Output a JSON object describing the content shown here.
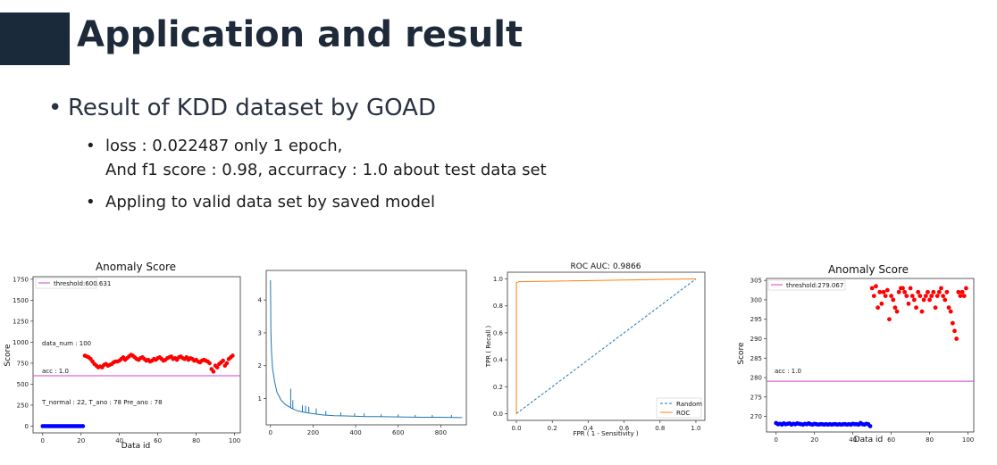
{
  "slide": {
    "title": "Application and result",
    "bullet_main": "Result of KDD dataset by GOAD",
    "sub_bullets": [
      "loss : 0.022487 only 1 epoch,",
      "And f1 score : 0.98, accurracy : 1.0 about test data set",
      "Appling to valid data set by saved model"
    ],
    "bullet_char": "•",
    "colors": {
      "title_block": "#1b2a3b",
      "title": "#1e2a3a",
      "normal": "#0000ff",
      "anomaly": "#ff0000",
      "threshold": "#cc44cc",
      "loss_line": "#1f77b4",
      "roc": "#ff7f0e",
      "random": "#1f77b4"
    }
  },
  "chart_data": [
    {
      "type": "scatter",
      "title": "Anomaly Score",
      "xlabel": "Data id",
      "ylabel": "Score",
      "xlim": [
        -5,
        103
      ],
      "ylim": [
        -80,
        1780
      ],
      "xticks": [
        0,
        20,
        40,
        60,
        80,
        100
      ],
      "yticks": [
        0,
        250,
        500,
        750,
        1000,
        1250,
        1500,
        1750
      ],
      "legend": "threshold:600.631",
      "legend_position": "top-left",
      "threshold": 600.631,
      "annotations": [
        "data_num : 100",
        "acc : 1.0",
        "T_normal : 22, T_ano : 78 Pre_ano : 78"
      ],
      "series": [
        {
          "color": "#0000ff",
          "x": [
            0,
            1,
            2,
            3,
            4,
            5,
            6,
            7,
            8,
            9,
            10,
            11,
            12,
            13,
            14,
            15,
            16,
            17,
            18,
            19,
            20,
            21
          ],
          "y": [
            0,
            0,
            0,
            0,
            0,
            0,
            0,
            0,
            0,
            0,
            0,
            0,
            0,
            0,
            0,
            0,
            0,
            0,
            0,
            0,
            0,
            0
          ]
        },
        {
          "color": "#ff0000",
          "x": [
            22,
            23,
            24,
            25,
            26,
            27,
            28,
            29,
            30,
            31,
            32,
            33,
            34,
            35,
            36,
            37,
            38,
            39,
            40,
            41,
            42,
            43,
            44,
            45,
            46,
            47,
            48,
            49,
            50,
            51,
            52,
            53,
            54,
            55,
            56,
            57,
            58,
            59,
            60,
            61,
            62,
            63,
            64,
            65,
            66,
            67,
            68,
            69,
            70,
            71,
            72,
            73,
            74,
            75,
            76,
            77,
            78,
            79,
            80,
            81,
            82,
            83,
            84,
            85,
            86,
            87,
            88,
            89,
            90,
            91,
            92,
            93,
            94,
            95,
            96,
            97,
            98,
            99
          ],
          "y": [
            840,
            830,
            820,
            800,
            770,
            740,
            720,
            700,
            710,
            700,
            730,
            740,
            720,
            730,
            740,
            760,
            770,
            770,
            780,
            800,
            820,
            790,
            810,
            830,
            850,
            840,
            820,
            800,
            790,
            810,
            820,
            800,
            780,
            790,
            770,
            780,
            800,
            790,
            810,
            820,
            800,
            780,
            790,
            810,
            820,
            830,
            800,
            810,
            790,
            820,
            830,
            810,
            800,
            820,
            790,
            810,
            800,
            780,
            790,
            770,
            760,
            780,
            790,
            780,
            770,
            750,
            680,
            650,
            720,
            700,
            740,
            760,
            780,
            720,
            750,
            800,
            820,
            840
          ]
        }
      ]
    },
    {
      "type": "line",
      "xlim": [
        -20,
        920
      ],
      "ylim": [
        0.2,
        4.9
      ],
      "xticks": [
        0,
        200,
        400,
        600,
        800
      ],
      "yticks": [
        1,
        2,
        3,
        4
      ],
      "color": "#1f77b4",
      "x": [
        0,
        2,
        5,
        10,
        20,
        30,
        50,
        70,
        100,
        130,
        160,
        200,
        250,
        300,
        350,
        400,
        450,
        500,
        600,
        700,
        800,
        900
      ],
      "y": [
        4.6,
        3.0,
        2.4,
        1.9,
        1.5,
        1.2,
        0.95,
        0.82,
        0.7,
        0.62,
        0.58,
        0.54,
        0.5,
        0.48,
        0.47,
        0.46,
        0.45,
        0.45,
        0.44,
        0.43,
        0.43,
        0.42
      ],
      "spikes": [
        {
          "x": 95,
          "y": 1.3
        },
        {
          "x": 105,
          "y": 0.95
        },
        {
          "x": 150,
          "y": 0.8
        },
        {
          "x": 165,
          "y": 0.78
        },
        {
          "x": 180,
          "y": 0.75
        },
        {
          "x": 215,
          "y": 0.7
        },
        {
          "x": 260,
          "y": 0.62
        },
        {
          "x": 330,
          "y": 0.58
        },
        {
          "x": 395,
          "y": 0.55
        },
        {
          "x": 440,
          "y": 0.55
        },
        {
          "x": 520,
          "y": 0.52
        },
        {
          "x": 600,
          "y": 0.52
        },
        {
          "x": 680,
          "y": 0.5
        },
        {
          "x": 760,
          "y": 0.5
        },
        {
          "x": 850,
          "y": 0.5
        }
      ]
    },
    {
      "type": "line",
      "title": "ROC AUC: 0.9866",
      "xlabel": "FPR ( 1 - Sensitivity )",
      "ylabel": "TPR ( Recall )",
      "xlim": [
        -0.05,
        1.05
      ],
      "ylim": [
        -0.05,
        1.05
      ],
      "xticks": [
        0.0,
        0.2,
        0.4,
        0.6,
        0.8,
        1.0
      ],
      "yticks": [
        0.0,
        0.2,
        0.4,
        0.6,
        0.8,
        1.0
      ],
      "legend_position": "bottom-right",
      "series": [
        {
          "name": "Random",
          "color": "#1f77b4",
          "dashed": true,
          "x": [
            0,
            1
          ],
          "y": [
            0,
            1
          ]
        },
        {
          "name": "ROC",
          "color": "#ff7f0e",
          "dashed": false,
          "x": [
            0,
            0,
            0.013,
            1
          ],
          "y": [
            0,
            0.97,
            0.98,
            1.0
          ]
        }
      ]
    },
    {
      "type": "scatter",
      "title": "Anomaly Score",
      "xlabel": "Data id",
      "ylabel": "Score",
      "xlim": [
        -5,
        103
      ],
      "ylim": [
        266,
        305.5
      ],
      "xticks": [
        0,
        20,
        40,
        60,
        80,
        100
      ],
      "yticks": [
        270,
        275,
        280,
        285,
        290,
        295,
        300,
        305
      ],
      "legend": "threshold:279.067",
      "legend_position": "top-left",
      "threshold": 279.067,
      "annotations": [
        "acc : 1.0"
      ],
      "series": [
        {
          "color": "#0000ff",
          "x": [
            0,
            1,
            2,
            3,
            4,
            5,
            6,
            7,
            8,
            9,
            10,
            11,
            12,
            13,
            14,
            15,
            16,
            17,
            18,
            19,
            20,
            21,
            22,
            23,
            24,
            25,
            26,
            27,
            28,
            29,
            30,
            31,
            32,
            33,
            34,
            35,
            36,
            37,
            38,
            39,
            40,
            41,
            42,
            43,
            44,
            45,
            46,
            47,
            48,
            49
          ],
          "y": [
            268.3,
            268.0,
            268.1,
            267.9,
            268.2,
            268.0,
            268.1,
            268.2,
            267.9,
            268.1,
            268.0,
            268.2,
            268.1,
            268.0,
            267.9,
            268.1,
            268.0,
            268.2,
            268.0,
            267.9,
            268.1,
            268.0,
            267.9,
            268.0,
            268.0,
            267.9,
            268.0,
            267.9,
            268.0,
            267.9,
            268.0,
            268.0,
            267.9,
            268.0,
            267.9,
            268.0,
            268.0,
            267.9,
            268.0,
            267.9,
            268.1,
            268.0,
            268.0,
            267.9,
            268.3,
            268.0,
            267.9,
            268.1,
            268.0,
            267.5
          ]
        },
        {
          "color": "#ff0000",
          "x": [
            50,
            51,
            52,
            53,
            54,
            55,
            56,
            57,
            58,
            59,
            60,
            61,
            62,
            63,
            64,
            65,
            66,
            67,
            68,
            69,
            70,
            71,
            72,
            73,
            74,
            75,
            76,
            77,
            78,
            79,
            80,
            81,
            82,
            83,
            84,
            85,
            86,
            87,
            88,
            89,
            90,
            91,
            92,
            93,
            94,
            95,
            96,
            97,
            98,
            99
          ],
          "y": [
            303,
            301,
            303.5,
            298,
            302,
            299,
            302,
            301,
            302.5,
            295,
            301,
            300,
            298,
            297,
            302,
            303,
            303,
            302,
            301,
            299,
            303,
            301,
            300,
            298,
            302,
            301,
            297,
            300,
            301,
            302,
            300,
            301,
            302,
            298,
            301,
            302,
            303,
            301,
            300,
            302,
            298,
            297,
            294,
            292,
            290,
            302,
            301,
            302,
            301,
            303
          ]
        }
      ]
    }
  ]
}
